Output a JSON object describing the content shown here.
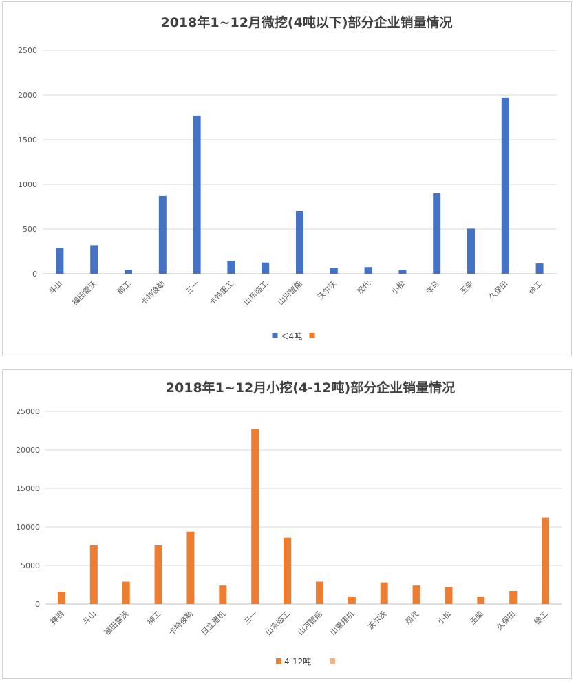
{
  "chart_data": [
    {
      "type": "bar",
      "title": "2018年1~12月微挖(4吨以下)部分企业销量情况",
      "xlabel": "",
      "ylabel": "",
      "ylim": [
        0,
        2500
      ],
      "yticks": [
        0,
        500,
        1000,
        1500,
        2000,
        2500
      ],
      "grid": true,
      "legend_position": "bottom",
      "categories": [
        "斗山",
        "福田雷沃",
        "柳工",
        "卡特彼勒",
        "三一",
        "卡特重工",
        "山东临工",
        "山河智能",
        "沃尔沃",
        "现代",
        "小松",
        "洋马",
        "玉柴",
        "久保田",
        "徐工"
      ],
      "series": [
        {
          "name": "＜4吨",
          "color": "#4472c4",
          "values": [
            290,
            320,
            45,
            870,
            1770,
            145,
            125,
            700,
            65,
            75,
            45,
            900,
            505,
            1970,
            115
          ]
        }
      ],
      "legend": [
        {
          "label": "＜4吨",
          "color": "#4472c4"
        },
        {
          "label": "",
          "color": "#ed7d31"
        }
      ]
    },
    {
      "type": "bar",
      "title": "2018年1~12月小挖(4-12吨)部分企业销量情况",
      "xlabel": "",
      "ylabel": "",
      "ylim": [
        0,
        25000
      ],
      "yticks": [
        0,
        5000,
        10000,
        15000,
        20000,
        25000
      ],
      "grid": true,
      "legend_position": "bottom",
      "categories": [
        "神钢",
        "斗山",
        "福田雷沃",
        "柳工",
        "卡特彼勒",
        "日立建机",
        "三一",
        "山东临工",
        "山河智能",
        "山重建机",
        "沃尔沃",
        "现代",
        "小松",
        "玉柴",
        "久保田",
        "徐工"
      ],
      "series": [
        {
          "name": "4-12吨",
          "color": "#ed7d31",
          "values": [
            1600,
            7600,
            2900,
            7600,
            9400,
            2400,
            22700,
            8600,
            2900,
            900,
            2800,
            2400,
            2200,
            900,
            1700,
            11200
          ]
        }
      ],
      "legend": [
        {
          "label": "4-12吨",
          "color": "#ed7d31"
        },
        {
          "label": "",
          "color": "#f4b183"
        }
      ]
    }
  ]
}
